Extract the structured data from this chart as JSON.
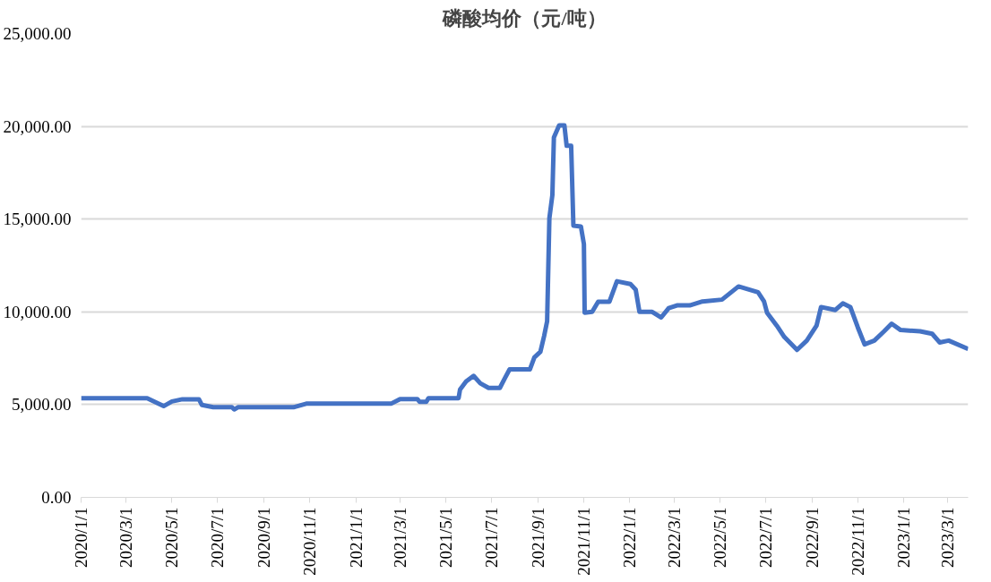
{
  "chart_data": {
    "type": "line",
    "title": "磷酸均价（元/吨）",
    "x": [
      "2020-01-01",
      "2020-03-29",
      "2020-04-20",
      "2020-05-01",
      "2020-05-15",
      "2020-06-06",
      "2020-06-10",
      "2020-06-25",
      "2020-07-20",
      "2020-07-23",
      "2020-07-28",
      "2020-10-10",
      "2020-10-27",
      "2021-02-17",
      "2021-03-01",
      "2021-03-10",
      "2021-03-24",
      "2021-03-27",
      "2021-04-05",
      "2021-04-08",
      "2021-05-18",
      "2021-05-20",
      "2021-05-28",
      "2021-06-07",
      "2021-06-16",
      "2021-06-27",
      "2021-07-12",
      "2021-07-19",
      "2021-07-25",
      "2021-08-21",
      "2021-08-27",
      "2021-09-04",
      "2021-09-09",
      "2021-09-13",
      "2021-09-16",
      "2021-09-20",
      "2021-09-22",
      "2021-09-29",
      "2021-10-06",
      "2021-10-09",
      "2021-10-15",
      "2021-10-18",
      "2021-10-28",
      "2021-11-01",
      "2021-11-02",
      "2021-11-12",
      "2021-11-20",
      "2021-12-05",
      "2021-12-15",
      "2022-01-02",
      "2022-01-09",
      "2022-01-14",
      "2022-01-31",
      "2022-02-12",
      "2022-02-22",
      "2022-03-05",
      "2022-03-22",
      "2022-04-08",
      "2022-05-04",
      "2022-05-26",
      "2022-06-21",
      "2022-06-29",
      "2022-07-03",
      "2022-07-16",
      "2022-07-26",
      "2022-08-12",
      "2022-08-25",
      "2022-09-07",
      "2022-09-13",
      "2022-10-02",
      "2022-10-12",
      "2022-10-22",
      "2022-11-01",
      "2022-11-10",
      "2022-11-23",
      "2022-12-06",
      "2022-12-16",
      "2022-12-28",
      "2023-01-23",
      "2023-02-08",
      "2023-02-18",
      "2023-03-02",
      "2023-03-28"
    ],
    "series": [
      {
        "color": "#4472c4",
        "values": [
          5350,
          5350,
          4920,
          5170,
          5290,
          5290,
          4980,
          4860,
          4860,
          4740,
          4860,
          4860,
          5050,
          5050,
          5300,
          5300,
          5300,
          5150,
          5150,
          5350,
          5350,
          5820,
          6250,
          6550,
          6150,
          5900,
          5900,
          6450,
          6900,
          6900,
          7550,
          7850,
          8700,
          9500,
          15050,
          16300,
          19400,
          20050,
          20050,
          18950,
          18950,
          14650,
          14600,
          13650,
          9950,
          10000,
          10550,
          10550,
          11650,
          11500,
          11200,
          10000,
          10000,
          9700,
          10200,
          10350,
          10350,
          10560,
          10660,
          11370,
          11060,
          10560,
          9960,
          9260,
          8650,
          7950,
          8450,
          9260,
          10260,
          10100,
          10460,
          10260,
          9160,
          8250,
          8450,
          8950,
          9360,
          9020,
          8950,
          8820,
          8350,
          8450,
          8000
        ]
      }
    ],
    "xlim": [
      "2020-01-01",
      "2023-03-28"
    ],
    "xticks": [
      {
        "value": "2020-01-01",
        "label": "2020/1/1"
      },
      {
        "value": "2020-03-01",
        "label": "2020/3/1"
      },
      {
        "value": "2020-05-01",
        "label": "2020/5/1"
      },
      {
        "value": "2020-07-01",
        "label": "2020/7/1"
      },
      {
        "value": "2020-09-01",
        "label": "2020/9/1"
      },
      {
        "value": "2020-11-01",
        "label": "2020/11/1"
      },
      {
        "value": "2021-01-01",
        "label": "2021/1/1"
      },
      {
        "value": "2021-03-01",
        "label": "2021/3/1"
      },
      {
        "value": "2021-05-01",
        "label": "2021/5/1"
      },
      {
        "value": "2021-07-01",
        "label": "2021/7/1"
      },
      {
        "value": "2021-09-01",
        "label": "2021/9/1"
      },
      {
        "value": "2021-11-01",
        "label": "2021/11/1"
      },
      {
        "value": "2022-01-01",
        "label": "2022/1/1"
      },
      {
        "value": "2022-03-01",
        "label": "2022/3/1"
      },
      {
        "value": "2022-05-01",
        "label": "2022/5/1"
      },
      {
        "value": "2022-07-01",
        "label": "2022/7/1"
      },
      {
        "value": "2022-09-01",
        "label": "2022/9/1"
      },
      {
        "value": "2022-11-01",
        "label": "2022/11/1"
      },
      {
        "value": "2023-01-01",
        "label": "2023/1/1"
      },
      {
        "value": "2023-03-01",
        "label": "2023/3/1"
      }
    ],
    "ylim": [
      0,
      25000
    ],
    "yticks": [
      {
        "value": 0,
        "label": "0.00"
      },
      {
        "value": 5000,
        "label": "5,000.00"
      },
      {
        "value": 10000,
        "label": "10,000.00"
      },
      {
        "value": 15000,
        "label": "15,000.00"
      },
      {
        "value": 20000,
        "label": "20,000.00"
      },
      {
        "value": 25000,
        "label": "25,000.00"
      }
    ],
    "grid": "y",
    "marker": "none",
    "line_style": "solid"
  }
}
